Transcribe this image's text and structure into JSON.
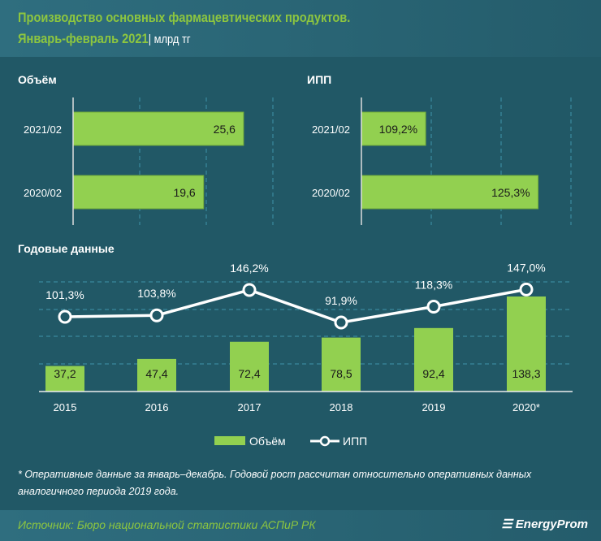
{
  "title": {
    "line1": "Производство основных фармацевтических продуктов.",
    "line2": "Январь-февраль 2021",
    "unit": "| млрд тг"
  },
  "colors": {
    "bar": "#92d050",
    "background": "#215866",
    "title": "#8dc63f",
    "line": "#ffffff"
  },
  "chart_data": [
    {
      "type": "bar",
      "orientation": "horizontal",
      "title": "Объём",
      "categories": [
        "2021/02",
        "2020/02"
      ],
      "values": [
        25.6,
        19.6
      ],
      "labels": [
        "25,6",
        "19,6"
      ],
      "xlim": [
        0,
        40
      ],
      "grid": true
    },
    {
      "type": "bar",
      "orientation": "horizontal",
      "title": "ИПП",
      "categories": [
        "2021/02",
        "2020/02"
      ],
      "values": [
        109.2,
        125.3
      ],
      "labels": [
        "109,2%",
        "125,3%"
      ],
      "xlim": [
        100,
        140
      ],
      "grid": true
    },
    {
      "type": "bar+line",
      "title": "Годовые данные",
      "categories": [
        "2015",
        "2016",
        "2017",
        "2018",
        "2019",
        "2020*"
      ],
      "series": [
        {
          "name": "Объём",
          "type": "bar",
          "values": [
            37.2,
            47.4,
            72.4,
            78.5,
            92.4,
            138.3
          ],
          "labels": [
            "37,2",
            "47,4",
            "72,4",
            "78,5",
            "92,4",
            "138,3"
          ]
        },
        {
          "name": "ИПП",
          "type": "line",
          "values": [
            101.3,
            103.8,
            146.2,
            91.9,
            118.3,
            147.0
          ],
          "labels": [
            "101,3%",
            "103,8%",
            "146,2%",
            "91,9%",
            "118,3%",
            "147,0%"
          ]
        }
      ],
      "legend": "bottom",
      "grid": true
    }
  ],
  "footnote": "* Оперативные данные за январь–декабрь. Годовой рост рассчитан относительно оперативных данных аналогичного периода 2019 года.",
  "source": "Источник: Бюро национальной  статистики АСПиР РК",
  "logo": "EnergyProm"
}
